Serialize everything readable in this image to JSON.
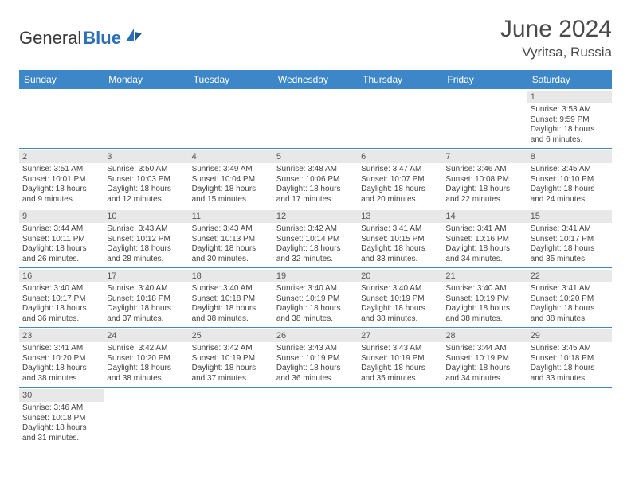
{
  "logo": {
    "text1": "General",
    "text2": "Blue"
  },
  "title": "June 2024",
  "location": "Vyritsa, Russia",
  "colors": {
    "header_bg": "#3d87c9",
    "header_text": "#ffffff",
    "daynum_bg": "#e8e8e8",
    "border": "#3d87c9",
    "logo_blue": "#2b6fb5"
  },
  "weekdays": [
    "Sunday",
    "Monday",
    "Tuesday",
    "Wednesday",
    "Thursday",
    "Friday",
    "Saturday"
  ],
  "weeks": [
    [
      null,
      null,
      null,
      null,
      null,
      null,
      {
        "n": "1",
        "sr": "Sunrise: 3:53 AM",
        "ss": "Sunset: 9:59 PM",
        "dl": "Daylight: 18 hours and 6 minutes."
      }
    ],
    [
      {
        "n": "2",
        "sr": "Sunrise: 3:51 AM",
        "ss": "Sunset: 10:01 PM",
        "dl": "Daylight: 18 hours and 9 minutes."
      },
      {
        "n": "3",
        "sr": "Sunrise: 3:50 AM",
        "ss": "Sunset: 10:03 PM",
        "dl": "Daylight: 18 hours and 12 minutes."
      },
      {
        "n": "4",
        "sr": "Sunrise: 3:49 AM",
        "ss": "Sunset: 10:04 PM",
        "dl": "Daylight: 18 hours and 15 minutes."
      },
      {
        "n": "5",
        "sr": "Sunrise: 3:48 AM",
        "ss": "Sunset: 10:06 PM",
        "dl": "Daylight: 18 hours and 17 minutes."
      },
      {
        "n": "6",
        "sr": "Sunrise: 3:47 AM",
        "ss": "Sunset: 10:07 PM",
        "dl": "Daylight: 18 hours and 20 minutes."
      },
      {
        "n": "7",
        "sr": "Sunrise: 3:46 AM",
        "ss": "Sunset: 10:08 PM",
        "dl": "Daylight: 18 hours and 22 minutes."
      },
      {
        "n": "8",
        "sr": "Sunrise: 3:45 AM",
        "ss": "Sunset: 10:10 PM",
        "dl": "Daylight: 18 hours and 24 minutes."
      }
    ],
    [
      {
        "n": "9",
        "sr": "Sunrise: 3:44 AM",
        "ss": "Sunset: 10:11 PM",
        "dl": "Daylight: 18 hours and 26 minutes."
      },
      {
        "n": "10",
        "sr": "Sunrise: 3:43 AM",
        "ss": "Sunset: 10:12 PM",
        "dl": "Daylight: 18 hours and 28 minutes."
      },
      {
        "n": "11",
        "sr": "Sunrise: 3:43 AM",
        "ss": "Sunset: 10:13 PM",
        "dl": "Daylight: 18 hours and 30 minutes."
      },
      {
        "n": "12",
        "sr": "Sunrise: 3:42 AM",
        "ss": "Sunset: 10:14 PM",
        "dl": "Daylight: 18 hours and 32 minutes."
      },
      {
        "n": "13",
        "sr": "Sunrise: 3:41 AM",
        "ss": "Sunset: 10:15 PM",
        "dl": "Daylight: 18 hours and 33 minutes."
      },
      {
        "n": "14",
        "sr": "Sunrise: 3:41 AM",
        "ss": "Sunset: 10:16 PM",
        "dl": "Daylight: 18 hours and 34 minutes."
      },
      {
        "n": "15",
        "sr": "Sunrise: 3:41 AM",
        "ss": "Sunset: 10:17 PM",
        "dl": "Daylight: 18 hours and 35 minutes."
      }
    ],
    [
      {
        "n": "16",
        "sr": "Sunrise: 3:40 AM",
        "ss": "Sunset: 10:17 PM",
        "dl": "Daylight: 18 hours and 36 minutes."
      },
      {
        "n": "17",
        "sr": "Sunrise: 3:40 AM",
        "ss": "Sunset: 10:18 PM",
        "dl": "Daylight: 18 hours and 37 minutes."
      },
      {
        "n": "18",
        "sr": "Sunrise: 3:40 AM",
        "ss": "Sunset: 10:18 PM",
        "dl": "Daylight: 18 hours and 38 minutes."
      },
      {
        "n": "19",
        "sr": "Sunrise: 3:40 AM",
        "ss": "Sunset: 10:19 PM",
        "dl": "Daylight: 18 hours and 38 minutes."
      },
      {
        "n": "20",
        "sr": "Sunrise: 3:40 AM",
        "ss": "Sunset: 10:19 PM",
        "dl": "Daylight: 18 hours and 38 minutes."
      },
      {
        "n": "21",
        "sr": "Sunrise: 3:40 AM",
        "ss": "Sunset: 10:19 PM",
        "dl": "Daylight: 18 hours and 38 minutes."
      },
      {
        "n": "22",
        "sr": "Sunrise: 3:41 AM",
        "ss": "Sunset: 10:20 PM",
        "dl": "Daylight: 18 hours and 38 minutes."
      }
    ],
    [
      {
        "n": "23",
        "sr": "Sunrise: 3:41 AM",
        "ss": "Sunset: 10:20 PM",
        "dl": "Daylight: 18 hours and 38 minutes."
      },
      {
        "n": "24",
        "sr": "Sunrise: 3:42 AM",
        "ss": "Sunset: 10:20 PM",
        "dl": "Daylight: 18 hours and 38 minutes."
      },
      {
        "n": "25",
        "sr": "Sunrise: 3:42 AM",
        "ss": "Sunset: 10:19 PM",
        "dl": "Daylight: 18 hours and 37 minutes."
      },
      {
        "n": "26",
        "sr": "Sunrise: 3:43 AM",
        "ss": "Sunset: 10:19 PM",
        "dl": "Daylight: 18 hours and 36 minutes."
      },
      {
        "n": "27",
        "sr": "Sunrise: 3:43 AM",
        "ss": "Sunset: 10:19 PM",
        "dl": "Daylight: 18 hours and 35 minutes."
      },
      {
        "n": "28",
        "sr": "Sunrise: 3:44 AM",
        "ss": "Sunset: 10:19 PM",
        "dl": "Daylight: 18 hours and 34 minutes."
      },
      {
        "n": "29",
        "sr": "Sunrise: 3:45 AM",
        "ss": "Sunset: 10:18 PM",
        "dl": "Daylight: 18 hours and 33 minutes."
      }
    ],
    [
      {
        "n": "30",
        "sr": "Sunrise: 3:46 AM",
        "ss": "Sunset: 10:18 PM",
        "dl": "Daylight: 18 hours and 31 minutes."
      },
      null,
      null,
      null,
      null,
      null,
      null
    ]
  ]
}
